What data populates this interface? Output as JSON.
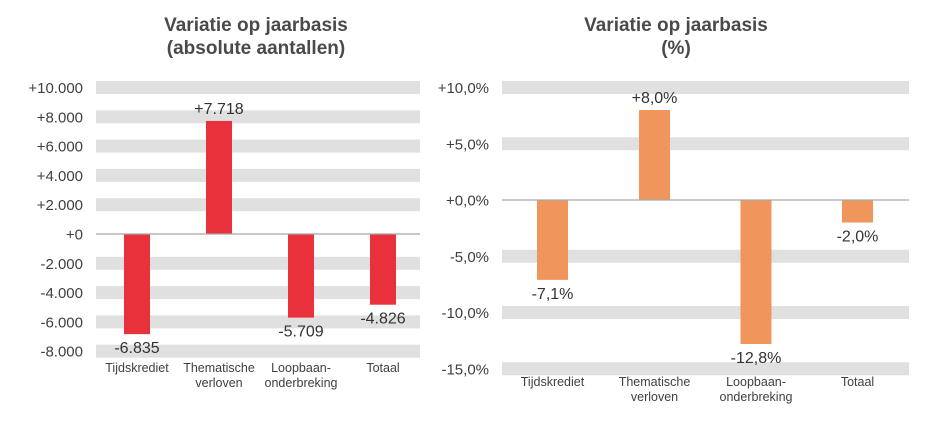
{
  "chart_data": [
    {
      "type": "bar",
      "title_line1": "Variatie op jaarbasis",
      "title_line2": "(absolute aantallen)",
      "xlabel": "",
      "ylabel": "",
      "categories": [
        {
          "line1": "Tijdskrediet",
          "line2": ""
        },
        {
          "line1": "Thematische",
          "line2": "verloven"
        },
        {
          "line1": "Loopbaan-",
          "line2": "onderbreking"
        },
        {
          "line1": "Totaal",
          "line2": ""
        }
      ],
      "values": [
        -6835,
        7718,
        -5709,
        -4826
      ],
      "data_labels": [
        "-6.835",
        "+7.718",
        "-5.709",
        "-4.826"
      ],
      "yticks": [
        10000,
        8000,
        6000,
        4000,
        2000,
        0,
        -2000,
        -4000,
        -6000,
        -8000
      ],
      "ytick_labels": [
        "+10.000",
        "+8.000",
        "+6.000",
        "+4.000",
        "+2.000",
        "+0",
        "-2.000",
        "-4.000",
        "-6.000",
        "-8.000"
      ],
      "ylim": [
        -8000,
        10000
      ],
      "grid": true,
      "bar_color": "#E8313A",
      "grid_color": "#E0E0E0",
      "axis_color": "#A6A6A6"
    },
    {
      "type": "bar",
      "title_line1": "Variatie op jaarbasis",
      "title_line2": "(%)",
      "xlabel": "",
      "ylabel": "",
      "categories": [
        {
          "line1": "Tijdskrediet",
          "line2": ""
        },
        {
          "line1": "Thematische",
          "line2": "verloven"
        },
        {
          "line1": "Loopbaan-",
          "line2": "onderbreking"
        },
        {
          "line1": "Totaal",
          "line2": ""
        }
      ],
      "values": [
        -7.1,
        8.0,
        -12.8,
        -2.0
      ],
      "data_labels": [
        "-7,1%",
        "+8,0%",
        "-12,8%",
        "-2,0%"
      ],
      "yticks": [
        10,
        5,
        0,
        -5,
        -10,
        -15
      ],
      "ytick_labels": [
        "+10,0%",
        "+5,0%",
        "+0,0%",
        "-5,0%",
        "-10,0%",
        "-15,0%"
      ],
      "ylim": [
        -15,
        10
      ],
      "grid": true,
      "bar_color": "#F0955C",
      "grid_color": "#E0E0E0",
      "axis_color": "#A6A6A6"
    }
  ]
}
